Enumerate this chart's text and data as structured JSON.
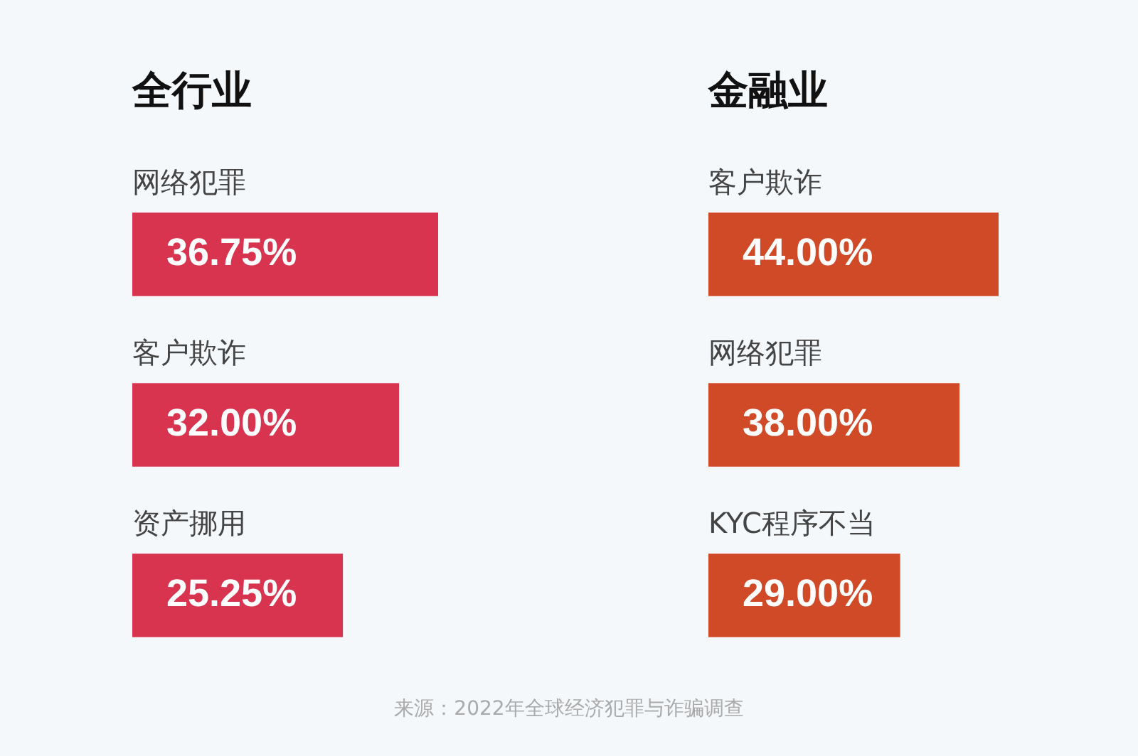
{
  "chart_data": [
    {
      "type": "bar",
      "orientation": "horizontal",
      "title": "全行业",
      "categories": [
        "网络犯罪",
        "客户欺诈",
        "资产挪用"
      ],
      "values": [
        36.75,
        32.0,
        25.25
      ],
      "value_labels": [
        "36.75%",
        "32.00%",
        "25.25%"
      ],
      "color": "#d9344f",
      "annotations": [
        "来源：2022年全球经济犯罪与诈骗调查"
      ]
    },
    {
      "type": "bar",
      "orientation": "horizontal",
      "title": "金融业",
      "categories": [
        "客户欺诈",
        "网络犯罪",
        "KYC程序不当"
      ],
      "values": [
        44.0,
        38.0,
        29.0
      ],
      "value_labels": [
        "44.00%",
        "38.00%",
        "29.00%"
      ],
      "color": "#d04a27"
    }
  ]
}
